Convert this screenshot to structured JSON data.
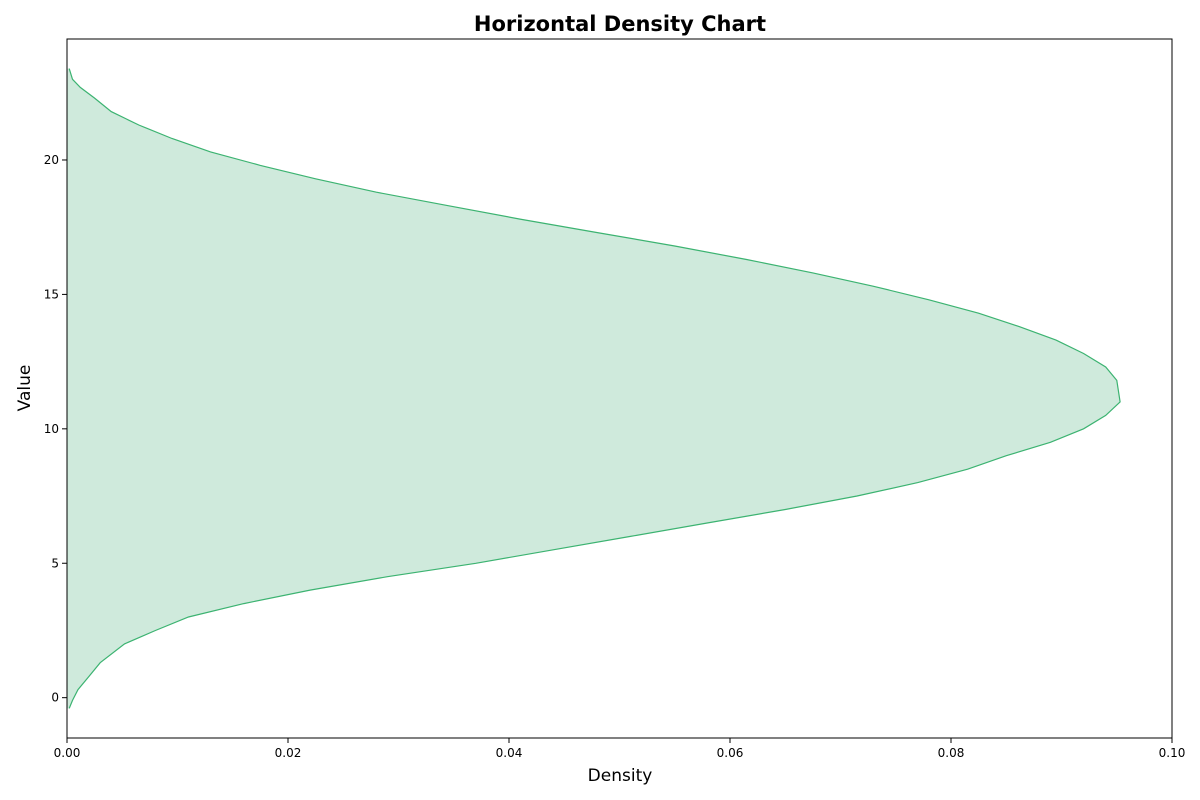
{
  "chart_data": {
    "type": "area",
    "orientation": "horizontal",
    "title": "Horizontal Density Chart",
    "xlabel": "Density",
    "ylabel": "Value",
    "xlim": [
      0,
      0.1
    ],
    "ylim": [
      -1.5,
      24.5
    ],
    "xticks": [
      0,
      0.02,
      0.04,
      0.06,
      0.08,
      0.1
    ],
    "xtick_labels": [
      "0.00",
      "0.02",
      "0.04",
      "0.06",
      "0.08",
      "0.10"
    ],
    "yticks": [
      0,
      5,
      10,
      15,
      20
    ],
    "ytick_labels": [
      "0",
      "5",
      "10",
      "15",
      "20"
    ],
    "grid": false,
    "legend": "none",
    "colors": {
      "line": "#3cb371",
      "fill": "#cfeadc",
      "frame": "#000000"
    },
    "series": [
      {
        "values": [
          0.0002,
          0.0005,
          0.001,
          0.002,
          0.003,
          0.0052,
          0.008,
          0.011,
          0.016,
          0.022,
          0.029,
          0.037,
          0.044,
          0.051,
          0.058,
          0.065,
          0.0715,
          0.077,
          0.0815,
          0.085,
          0.089,
          0.092,
          0.094,
          0.0953,
          0.095,
          0.094,
          0.092,
          0.0895,
          0.0862,
          0.0825,
          0.078,
          0.073,
          0.0675,
          0.0615,
          0.055,
          0.048,
          0.041,
          0.0345,
          0.028,
          0.0225,
          0.0175,
          0.013,
          0.0095,
          0.0065,
          0.004,
          0.0025,
          0.0012,
          0.0005,
          0.0002
        ],
        "y": [
          -0.4,
          -0.1,
          0.3,
          0.8,
          1.3,
          2.0,
          2.5,
          3.0,
          3.5,
          4.0,
          4.5,
          5.0,
          5.5,
          6.0,
          6.5,
          7.0,
          7.5,
          8.0,
          8.5,
          9.0,
          9.5,
          10.0,
          10.5,
          11.0,
          11.8,
          12.3,
          12.8,
          13.3,
          13.8,
          14.3,
          14.8,
          15.3,
          15.8,
          16.3,
          16.8,
          17.3,
          17.8,
          18.3,
          18.8,
          19.3,
          19.8,
          20.3,
          20.8,
          21.3,
          21.8,
          22.3,
          22.7,
          23.0,
          23.4
        ]
      }
    ]
  }
}
